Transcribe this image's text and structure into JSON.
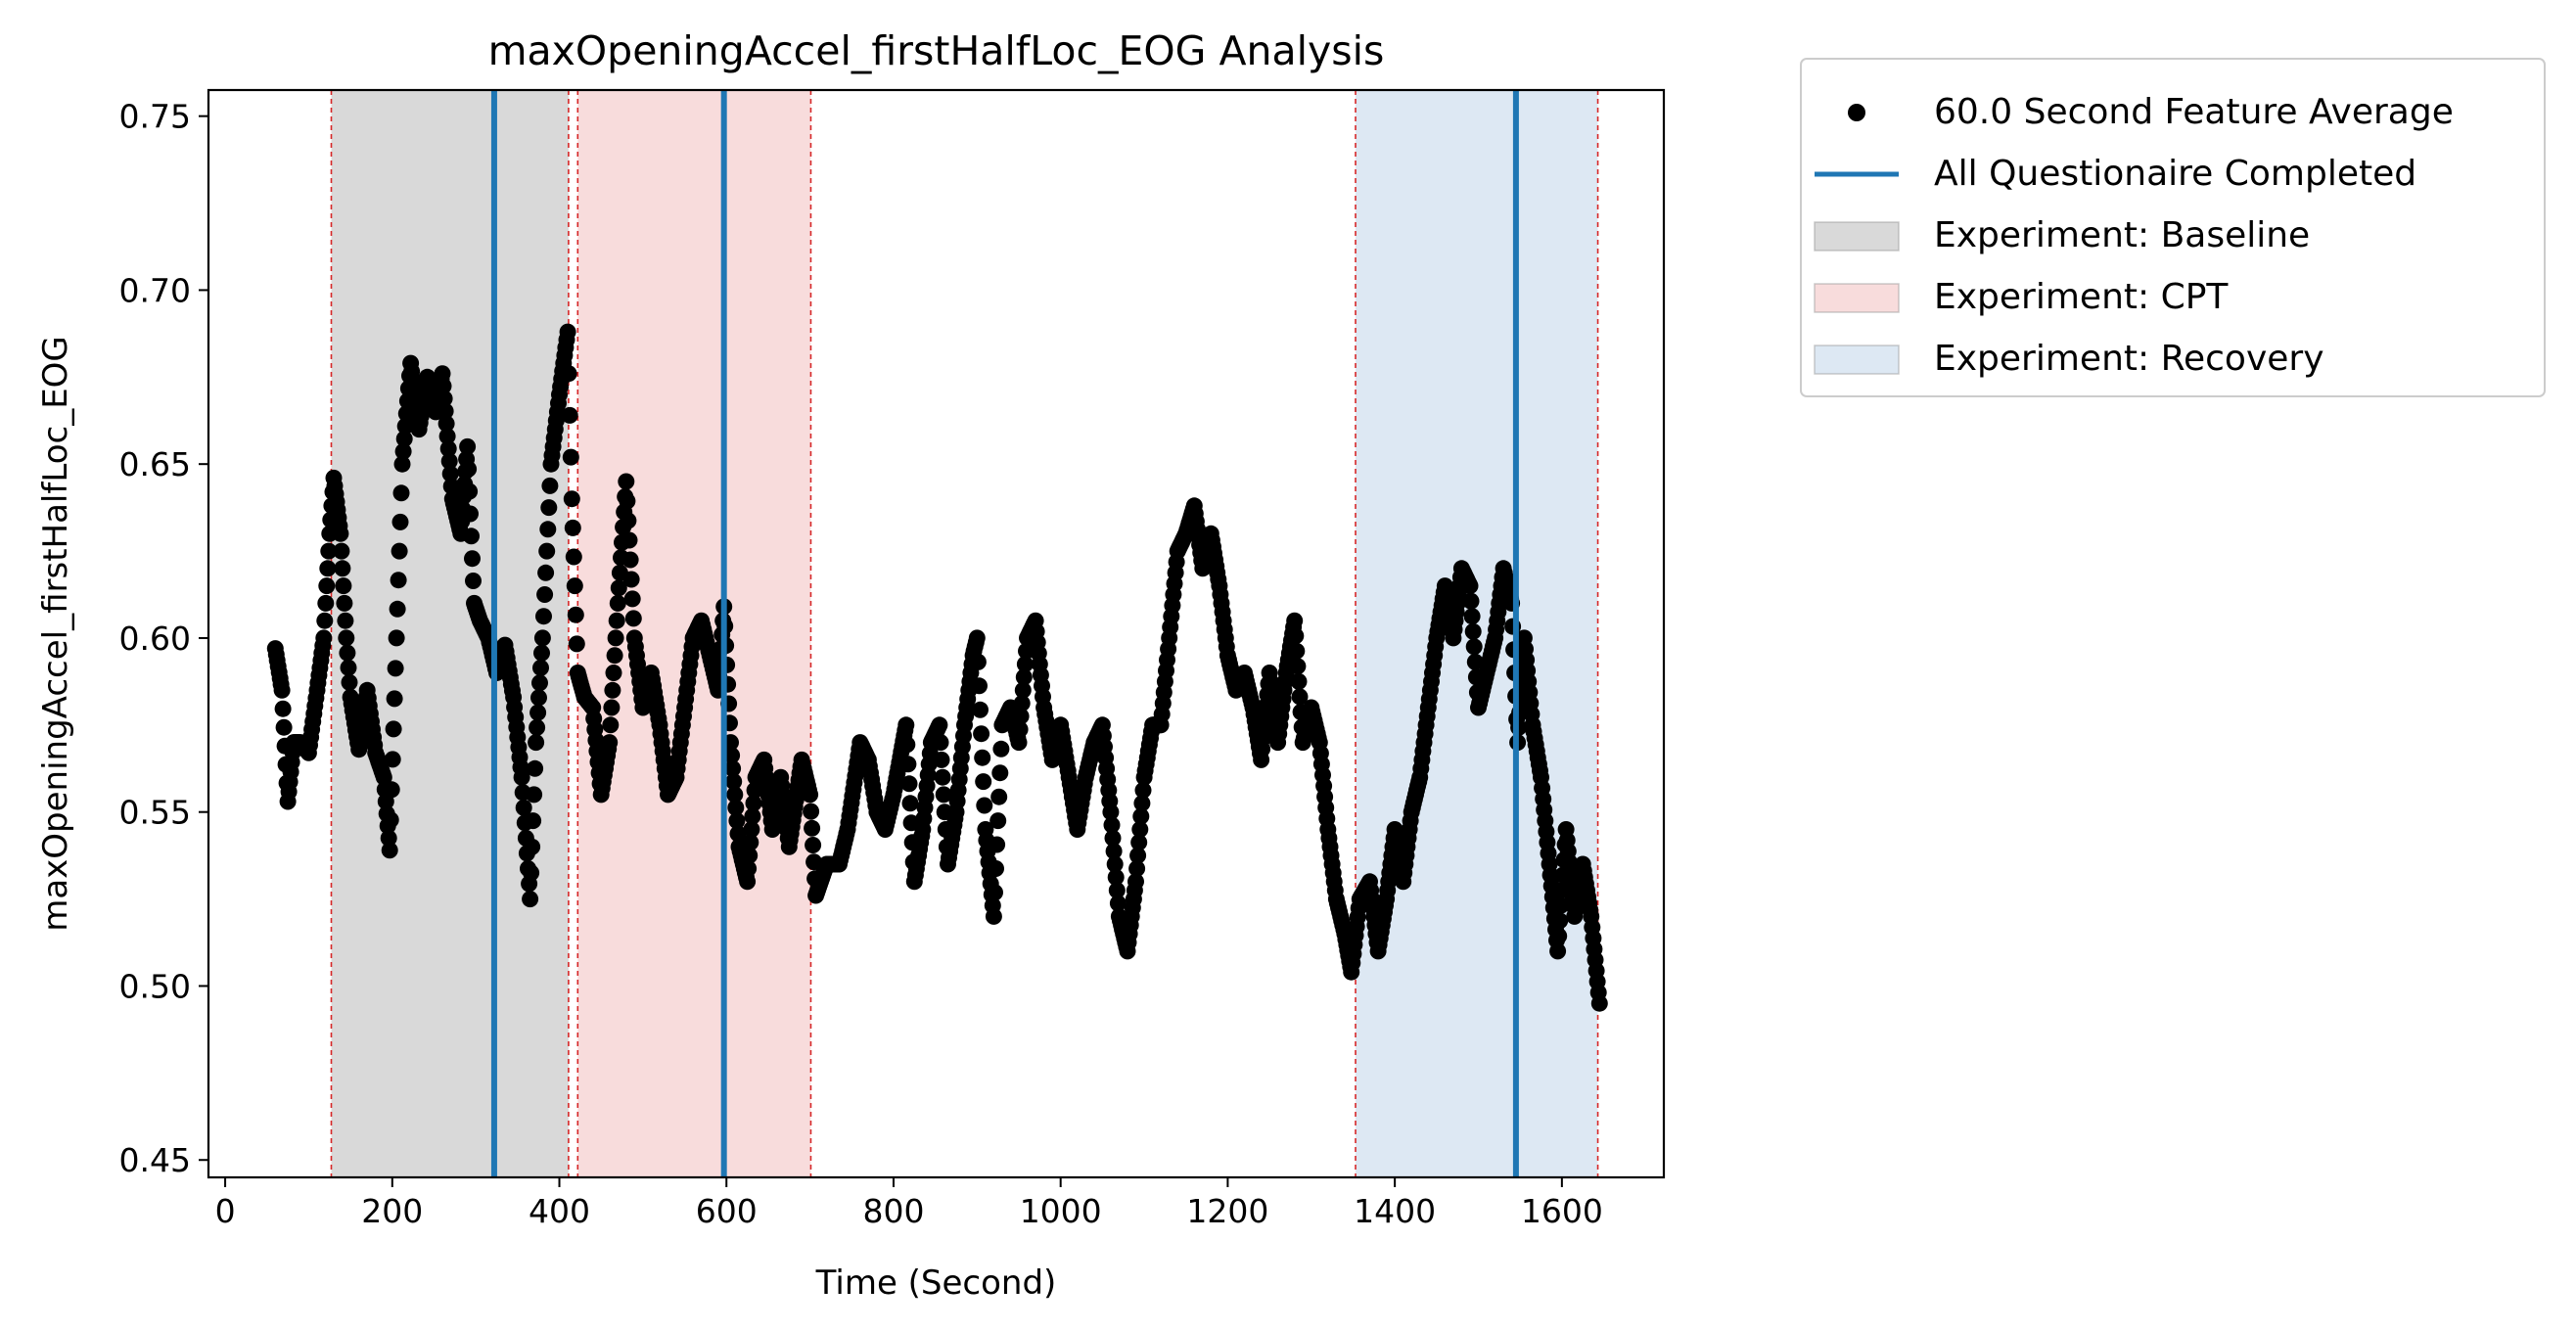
{
  "chart_data": {
    "type": "scatter",
    "title": "maxOpeningAccel_firstHalfLoc_EOG Analysis",
    "xlabel": "Time (Second)",
    "ylabel": "maxOpeningAccel_firstHalfLoc_EOG",
    "xlim": [
      -20,
      1722
    ],
    "ylim": [
      0.445,
      0.7575
    ],
    "xticks": [
      0,
      200,
      400,
      600,
      800,
      1000,
      1200,
      1400,
      1600
    ],
    "yticks": [
      0.45,
      0.5,
      0.55,
      0.6,
      0.65,
      0.7,
      0.75
    ],
    "xtick_labels": [
      "0",
      "200",
      "400",
      "600",
      "800",
      "1000",
      "1200",
      "1400",
      "1600"
    ],
    "ytick_labels": [
      "0.45",
      "0.50",
      "0.55",
      "0.60",
      "0.65",
      "0.70",
      "0.75"
    ],
    "grid": false,
    "legend_placement": "outside right, top",
    "legend": [
      {
        "label": "60.0 Second Feature Average",
        "kind": "marker",
        "color": "#000000"
      },
      {
        "label": "All Questionaire Completed",
        "kind": "line",
        "color": "#1f77b4"
      },
      {
        "label": "Experiment: Baseline",
        "kind": "patch",
        "color": "#d9d9d9"
      },
      {
        "label": "Experiment: CPT",
        "kind": "patch",
        "color": "#f8dcdc"
      },
      {
        "label": "Experiment: Recovery",
        "kind": "patch",
        "color": "#dde8f3"
      }
    ],
    "spans": [
      {
        "name": "Experiment: Baseline",
        "start": 127,
        "end": 411,
        "color": "#d9d9d9"
      },
      {
        "name": "Experiment: CPT",
        "start": 422,
        "end": 701,
        "color": "#f8dcdc"
      },
      {
        "name": "Experiment: Recovery",
        "start": 1353,
        "end": 1643,
        "color": "#dde8f3"
      }
    ],
    "boundary_lines": [
      127,
      411,
      422,
      701,
      1353,
      1643
    ],
    "boundary_color": "#d62728",
    "vlines": [
      322,
      597,
      1545
    ],
    "vline_color": "#1f77b4",
    "series": [
      {
        "name": "60.0 Second Feature Average",
        "color": "#000000",
        "keypoints": [
          [
            60,
            0.597
          ],
          [
            68,
            0.585
          ],
          [
            75,
            0.553
          ],
          [
            82,
            0.57
          ],
          [
            90,
            0.57
          ],
          [
            100,
            0.567
          ],
          [
            110,
            0.585
          ],
          [
            118,
            0.6
          ],
          [
            125,
            0.63
          ],
          [
            130,
            0.646
          ],
          [
            138,
            0.63
          ],
          [
            145,
            0.6
          ],
          [
            150,
            0.583
          ],
          [
            160,
            0.568
          ],
          [
            170,
            0.585
          ],
          [
            180,
            0.567
          ],
          [
            190,
            0.56
          ],
          [
            197,
            0.539
          ],
          [
            205,
            0.6
          ],
          [
            212,
            0.65
          ],
          [
            222,
            0.679
          ],
          [
            232,
            0.66
          ],
          [
            242,
            0.675
          ],
          [
            252,
            0.665
          ],
          [
            260,
            0.676
          ],
          [
            272,
            0.64
          ],
          [
            282,
            0.63
          ],
          [
            290,
            0.655
          ],
          [
            298,
            0.61
          ],
          [
            305,
            0.605
          ],
          [
            315,
            0.6
          ],
          [
            325,
            0.59
          ],
          [
            335,
            0.598
          ],
          [
            345,
            0.583
          ],
          [
            355,
            0.56
          ],
          [
            365,
            0.525
          ],
          [
            372,
            0.57
          ],
          [
            380,
            0.6
          ],
          [
            390,
            0.65
          ],
          [
            400,
            0.67
          ],
          [
            410,
            0.688
          ],
          [
            415,
            0.64
          ],
          [
            422,
            0.59
          ],
          [
            430,
            0.583
          ],
          [
            440,
            0.58
          ],
          [
            450,
            0.555
          ],
          [
            460,
            0.57
          ],
          [
            470,
            0.61
          ],
          [
            480,
            0.645
          ],
          [
            490,
            0.6
          ],
          [
            500,
            0.58
          ],
          [
            510,
            0.59
          ],
          [
            520,
            0.575
          ],
          [
            530,
            0.555
          ],
          [
            540,
            0.56
          ],
          [
            550,
            0.58
          ],
          [
            560,
            0.6
          ],
          [
            570,
            0.605
          ],
          [
            580,
            0.595
          ],
          [
            590,
            0.585
          ],
          [
            597,
            0.609
          ],
          [
            605,
            0.57
          ],
          [
            615,
            0.54
          ],
          [
            625,
            0.53
          ],
          [
            635,
            0.56
          ],
          [
            645,
            0.565
          ],
          [
            655,
            0.545
          ],
          [
            665,
            0.56
          ],
          [
            675,
            0.54
          ],
          [
            690,
            0.565
          ],
          [
            700,
            0.555
          ],
          [
            707,
            0.526
          ],
          [
            720,
            0.535
          ],
          [
            735,
            0.535
          ],
          [
            745,
            0.545
          ],
          [
            760,
            0.57
          ],
          [
            770,
            0.565
          ],
          [
            780,
            0.55
          ],
          [
            790,
            0.545
          ],
          [
            800,
            0.555
          ],
          [
            815,
            0.575
          ],
          [
            825,
            0.53
          ],
          [
            835,
            0.545
          ],
          [
            845,
            0.57
          ],
          [
            855,
            0.575
          ],
          [
            865,
            0.535
          ],
          [
            875,
            0.55
          ],
          [
            885,
            0.575
          ],
          [
            895,
            0.595
          ],
          [
            900,
            0.6
          ],
          [
            910,
            0.545
          ],
          [
            920,
            0.52
          ],
          [
            930,
            0.575
          ],
          [
            940,
            0.58
          ],
          [
            950,
            0.57
          ],
          [
            960,
            0.6
          ],
          [
            970,
            0.605
          ],
          [
            980,
            0.58
          ],
          [
            990,
            0.565
          ],
          [
            1000,
            0.575
          ],
          [
            1010,
            0.56
          ],
          [
            1020,
            0.545
          ],
          [
            1030,
            0.56
          ],
          [
            1040,
            0.57
          ],
          [
            1050,
            0.575
          ],
          [
            1060,
            0.55
          ],
          [
            1070,
            0.52
          ],
          [
            1080,
            0.51
          ],
          [
            1090,
            0.53
          ],
          [
            1100,
            0.56
          ],
          [
            1110,
            0.575
          ],
          [
            1120,
            0.575
          ],
          [
            1130,
            0.6
          ],
          [
            1140,
            0.625
          ],
          [
            1150,
            0.63
          ],
          [
            1160,
            0.638
          ],
          [
            1170,
            0.62
          ],
          [
            1180,
            0.63
          ],
          [
            1190,
            0.615
          ],
          [
            1200,
            0.595
          ],
          [
            1210,
            0.585
          ],
          [
            1220,
            0.59
          ],
          [
            1230,
            0.58
          ],
          [
            1240,
            0.565
          ],
          [
            1250,
            0.59
          ],
          [
            1260,
            0.57
          ],
          [
            1270,
            0.59
          ],
          [
            1280,
            0.605
          ],
          [
            1290,
            0.57
          ],
          [
            1300,
            0.58
          ],
          [
            1310,
            0.57
          ],
          [
            1320,
            0.545
          ],
          [
            1330,
            0.525
          ],
          [
            1340,
            0.515
          ],
          [
            1348,
            0.504
          ],
          [
            1358,
            0.525
          ],
          [
            1370,
            0.53
          ],
          [
            1380,
            0.51
          ],
          [
            1390,
            0.525
          ],
          [
            1400,
            0.545
          ],
          [
            1410,
            0.53
          ],
          [
            1420,
            0.55
          ],
          [
            1430,
            0.56
          ],
          [
            1440,
            0.58
          ],
          [
            1450,
            0.6
          ],
          [
            1460,
            0.615
          ],
          [
            1470,
            0.6
          ],
          [
            1480,
            0.62
          ],
          [
            1490,
            0.615
          ],
          [
            1500,
            0.58
          ],
          [
            1510,
            0.59
          ],
          [
            1520,
            0.6
          ],
          [
            1530,
            0.62
          ],
          [
            1540,
            0.61
          ],
          [
            1547,
            0.57
          ],
          [
            1555,
            0.6
          ],
          [
            1565,
            0.575
          ],
          [
            1575,
            0.56
          ],
          [
            1585,
            0.535
          ],
          [
            1595,
            0.51
          ],
          [
            1605,
            0.545
          ],
          [
            1615,
            0.52
          ],
          [
            1625,
            0.535
          ],
          [
            1635,
            0.52
          ],
          [
            1645,
            0.495
          ]
        ]
      }
    ]
  }
}
